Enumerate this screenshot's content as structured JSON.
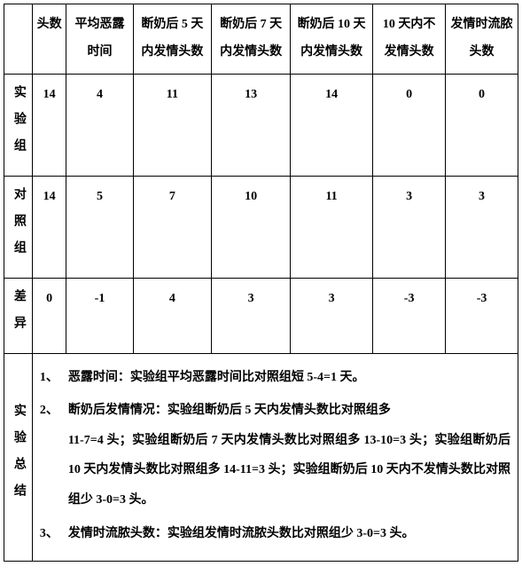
{
  "columns": {
    "row_header_blank": "",
    "c1": "头数",
    "c2": "平均恶露时间",
    "c3": "断奶后 5 天内发情头数",
    "c4": "断奶后 7 天内发情头数",
    "c5": "断奶后 10 天内发情头数",
    "c6": "10 天内不发情头数",
    "c7": "发情时流脓头数"
  },
  "rows": {
    "r1": {
      "label": "实验组",
      "c1": "14",
      "c2": "4",
      "c3": "11",
      "c4": "13",
      "c5": "14",
      "c6": "0",
      "c7": "0"
    },
    "r2": {
      "label": "对照组",
      "c1": "14",
      "c2": "5",
      "c3": "7",
      "c4": "10",
      "c5": "11",
      "c6": "3",
      "c7": "3"
    },
    "r3": {
      "label": "差异",
      "c1": "0",
      "c2": "-1",
      "c3": "4",
      "c4": "3",
      "c5": "3",
      "c6": "-3",
      "c7": "-3"
    }
  },
  "summary": {
    "label": "实验总结",
    "items": {
      "n1": "1、",
      "t1a": "恶露时间：实验组平均恶露时间比对照组短 5-4=1 天。",
      "n2": "2、",
      "t2a": "断奶后发情情况：实验组断奶后 5 天内发情头数比对照组多",
      "t2b": "11-7=4 头；实验组断奶后 7 天内发情头数比对照组多 13-10=3 头；实验组断奶后 10 天内发情头数比对照组多 14-11=3 头；实验组断奶后 10 天内不发情头数比对照组少 3-0=3 头。",
      "n3": "3、",
      "t3a": "发情时流脓头数：实验组发情时流脓头数比对照组少 3-0=3 头。"
    }
  }
}
